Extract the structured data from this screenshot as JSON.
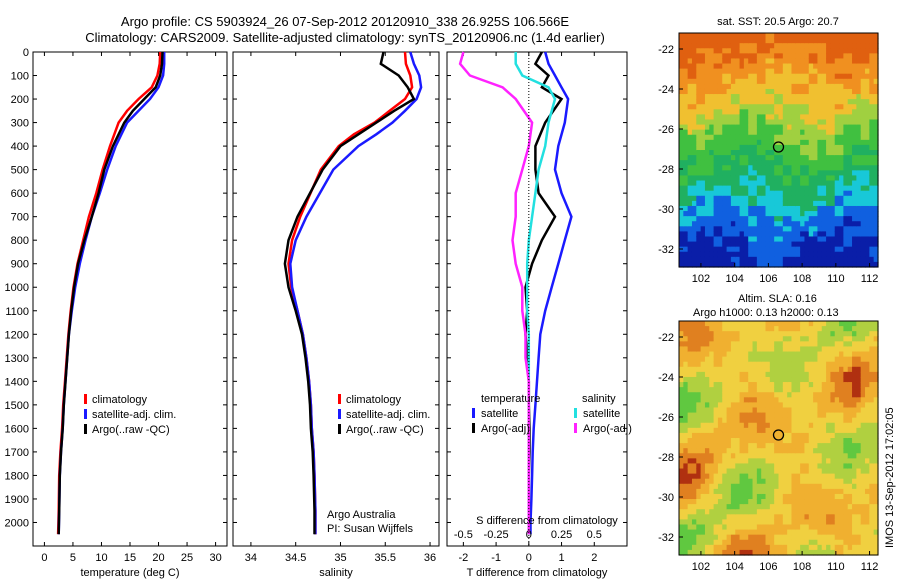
{
  "header": {
    "title_line1": "Argo profile: CS 5903924_26 07-Sep-2012 20120910_338 26.925S 106.566E",
    "title_line2": "Climatology: CARS2009. Satellite-adjusted climatology: synTS_20120906.nc (1.4d earlier)"
  },
  "side_stamp": "IMOS 13-Sep-2012 17:02:05",
  "colors": {
    "red": "#ff0000",
    "blue": "#1a1aff",
    "black": "#000000",
    "cyan": "#22e0e0",
    "magenta": "#ff22ff"
  },
  "legends": {
    "climatology": "climatology",
    "satellite_adj": "satellite-adj. clim.",
    "argo": "Argo(..raw -QC)",
    "temperature_hdr": "temperature",
    "salinity_hdr": "salinity",
    "satellite": "satellite",
    "argo_adj": "Argo(-adj)"
  },
  "annotations": {
    "argo_australia": "Argo Australia",
    "pi": "PI: Susan Wijffels",
    "s_diff_label": "S difference from climatology",
    "sst_title": "sat. SST: 20.5 Argo: 20.7",
    "sla_title1": "Altim. SLA: 0.16",
    "sla_title2": "Argo h1000: 0.13 h2000: 0.13"
  },
  "chart_data": [
    {
      "type": "line",
      "xlabel": "temperature (deg C)",
      "xlim": [
        -2,
        32
      ],
      "ylim": [
        2100,
        0
      ],
      "xticks": [
        0,
        5,
        10,
        15,
        20,
        25,
        30
      ],
      "yticks": [
        0,
        100,
        200,
        300,
        400,
        500,
        600,
        700,
        800,
        900,
        1000,
        1100,
        1200,
        1300,
        1400,
        1500,
        1600,
        1700,
        1800,
        1900,
        2000
      ],
      "series": [
        {
          "name": "climatology",
          "color": "red",
          "x": [
            20.3,
            20.2,
            19.8,
            18.8,
            16.5,
            14.5,
            13.0,
            11.5,
            10.2,
            9.1,
            7.8,
            6.8,
            5.8,
            5.1,
            4.6,
            4.2,
            3.9,
            3.6,
            3.3,
            3.1,
            2.8,
            2.6,
            2.5,
            2.4
          ],
          "y": [
            0,
            50,
            100,
            150,
            200,
            250,
            300,
            400,
            500,
            600,
            700,
            800,
            900,
            1000,
            1100,
            1200,
            1300,
            1400,
            1500,
            1600,
            1700,
            1800,
            1950,
            2050
          ]
        },
        {
          "name": "satellite-adj. clim.",
          "color": "blue",
          "x": [
            21.0,
            21.0,
            20.8,
            20.0,
            18.5,
            16.5,
            14.5,
            12.5,
            11.0,
            9.7,
            8.3,
            7.2,
            6.2,
            5.4,
            4.8,
            4.3,
            4.0,
            3.7,
            3.4,
            3.2,
            2.9,
            2.7,
            2.6,
            2.5
          ],
          "y": [
            0,
            50,
            100,
            150,
            200,
            250,
            300,
            400,
            500,
            600,
            700,
            800,
            900,
            1000,
            1100,
            1200,
            1300,
            1400,
            1500,
            1600,
            1700,
            1800,
            1950,
            2050
          ]
        },
        {
          "name": "Argo(..raw -QC)",
          "color": "black",
          "x": [
            20.7,
            20.6,
            20.3,
            19.5,
            17.5,
            15.5,
            14.0,
            12.0,
            10.5,
            9.5,
            8.3,
            7.0,
            5.9,
            5.2,
            4.7,
            4.3,
            4.0,
            3.7,
            3.4,
            3.2,
            2.9,
            2.7,
            2.6,
            2.5
          ],
          "y": [
            0,
            50,
            100,
            150,
            200,
            250,
            300,
            400,
            500,
            600,
            700,
            800,
            900,
            1000,
            1100,
            1200,
            1300,
            1400,
            1500,
            1600,
            1700,
            1800,
            1950,
            2050
          ]
        }
      ]
    },
    {
      "type": "line",
      "xlabel": "salinity",
      "xlim": [
        33.8,
        36.1
      ],
      "ylim": [
        2100,
        0
      ],
      "xticks": [
        34,
        34.5,
        35,
        35.5,
        36
      ],
      "series": [
        {
          "name": "climatology",
          "color": "red",
          "x": [
            35.72,
            35.73,
            35.78,
            35.8,
            35.72,
            35.55,
            35.38,
            35.15,
            34.98,
            34.78,
            34.55,
            34.46,
            34.42,
            34.45,
            34.52,
            34.58,
            34.62,
            34.65,
            34.67,
            34.68,
            34.7,
            34.71,
            34.72,
            34.72
          ],
          "y": [
            0,
            50,
            100,
            150,
            200,
            250,
            300,
            350,
            400,
            500,
            700,
            800,
            900,
            1000,
            1100,
            1200,
            1300,
            1400,
            1500,
            1600,
            1700,
            1800,
            1950,
            2050
          ]
        },
        {
          "name": "satellite-adj. clim.",
          "color": "blue",
          "x": [
            35.78,
            35.82,
            35.88,
            35.9,
            35.85,
            35.72,
            35.58,
            35.4,
            35.2,
            34.92,
            34.62,
            34.5,
            34.44,
            34.46,
            34.52,
            34.58,
            34.62,
            34.65,
            34.67,
            34.68,
            34.7,
            34.71,
            34.72,
            34.72
          ],
          "y": [
            0,
            50,
            100,
            150,
            200,
            250,
            300,
            350,
            400,
            500,
            700,
            800,
            900,
            1000,
            1100,
            1200,
            1300,
            1400,
            1500,
            1600,
            1700,
            1800,
            1950,
            2050
          ]
        },
        {
          "name": "Argo(..raw -QC)",
          "color": "black",
          "x": [
            35.48,
            35.45,
            35.65,
            35.75,
            35.82,
            35.6,
            35.4,
            35.2,
            35.0,
            34.8,
            34.52,
            34.42,
            34.38,
            34.42,
            34.5,
            34.57,
            34.61,
            34.64,
            34.66,
            34.67,
            34.69,
            34.7,
            34.71,
            34.71
          ],
          "y": [
            0,
            50,
            100,
            150,
            200,
            250,
            300,
            350,
            400,
            500,
            700,
            800,
            900,
            1000,
            1100,
            1200,
            1300,
            1400,
            1500,
            1600,
            1700,
            1800,
            1950,
            2050
          ]
        }
      ]
    },
    {
      "type": "line",
      "xlabel": "T difference from climatology",
      "xlim": [
        -2.5,
        3.0
      ],
      "ylim": [
        2100,
        0
      ],
      "xticks": [
        -2,
        -1,
        0,
        1,
        2
      ],
      "sxticklabels": [
        "-0.5",
        "-0.25",
        "0",
        "0.25",
        "0.5"
      ],
      "series": [
        {
          "name": "temperature satellite",
          "color": "blue",
          "x": [
            0.5,
            0.6,
            0.8,
            1.0,
            1.2,
            1.1,
            0.9,
            0.8,
            1.0,
            1.3,
            1.1,
            0.9,
            0.7,
            0.5,
            0.35,
            0.3,
            0.25,
            0.2,
            0.15,
            0.12,
            0.1,
            0.08,
            0.05,
            0.05
          ],
          "y": [
            0,
            50,
            100,
            150,
            200,
            300,
            400,
            500,
            600,
            700,
            800,
            900,
            1000,
            1100,
            1200,
            1300,
            1400,
            1500,
            1600,
            1700,
            1800,
            1900,
            2000,
            2050
          ]
        },
        {
          "name": "temperature Argo(-adj)",
          "color": "black",
          "x": [
            0.4,
            0.2,
            0.6,
            0.4,
            1.0,
            0.5,
            0.2,
            0.2,
            0.3,
            0.8,
            0.4,
            0.1,
            -0.1,
            -0.05,
            -0.1,
            -0.05,
            0.0,
            0.0,
            0.02,
            0.02,
            0.0,
            0.0,
            0.0,
            0.0
          ],
          "y": [
            0,
            50,
            100,
            150,
            200,
            300,
            400,
            500,
            600,
            700,
            800,
            900,
            1000,
            1100,
            1200,
            1300,
            1400,
            1500,
            1600,
            1700,
            1800,
            1900,
            2000,
            2050
          ]
        },
        {
          "name": "salinity satellite",
          "color": "cyan",
          "x": [
            -0.4,
            -0.4,
            -0.2,
            0.6,
            0.8,
            0.6,
            0.5,
            0.3,
            0.2,
            0.1,
            0.0,
            -0.05,
            -0.05,
            -0.05,
            0.0,
            0.0,
            0.0,
            0.0,
            0.0,
            0.0,
            0.0,
            0.0,
            0.0,
            0.0
          ],
          "y": [
            0,
            50,
            100,
            150,
            200,
            300,
            400,
            500,
            600,
            700,
            800,
            900,
            1000,
            1100,
            1200,
            1300,
            1400,
            1500,
            1600,
            1700,
            1800,
            1900,
            2000,
            2050
          ]
        },
        {
          "name": "salinity Argo(-adj)",
          "color": "magenta",
          "x": [
            -2.0,
            -2.1,
            -1.8,
            -0.8,
            -0.4,
            0.1,
            0.0,
            -0.2,
            -0.4,
            -0.4,
            -0.5,
            -0.4,
            -0.2,
            -0.2,
            -0.1,
            -0.1,
            0.0,
            0.0,
            0.0,
            0.0,
            0.0,
            0.0,
            0.0,
            0.0
          ],
          "y": [
            0,
            50,
            100,
            150,
            200,
            300,
            400,
            500,
            600,
            700,
            800,
            900,
            1000,
            1100,
            1200,
            1300,
            1400,
            1500,
            1600,
            1700,
            1800,
            1900,
            2000,
            2050
          ]
        }
      ]
    },
    {
      "type": "heatmap",
      "title": "sat. SST: 20.5 Argo: 20.7",
      "xticks": [
        102,
        104,
        106,
        108,
        110,
        112
      ],
      "yticks": [
        -22,
        -24,
        -26,
        -28,
        -30,
        -32
      ],
      "xlim": [
        100.7,
        112.5
      ],
      "ylim": [
        -32.9,
        -21.2
      ],
      "marker": {
        "lon": 106.6,
        "lat": -26.9
      }
    },
    {
      "type": "heatmap",
      "title": "Altim. SLA: 0.16",
      "xticks": [
        102,
        104,
        106,
        108,
        110,
        112
      ],
      "yticks": [
        -22,
        -24,
        -26,
        -28,
        -30,
        -32
      ],
      "xlim": [
        100.7,
        112.5
      ],
      "ylim": [
        -32.9,
        -21.2
      ],
      "marker": {
        "lon": 106.6,
        "lat": -26.9
      }
    }
  ]
}
